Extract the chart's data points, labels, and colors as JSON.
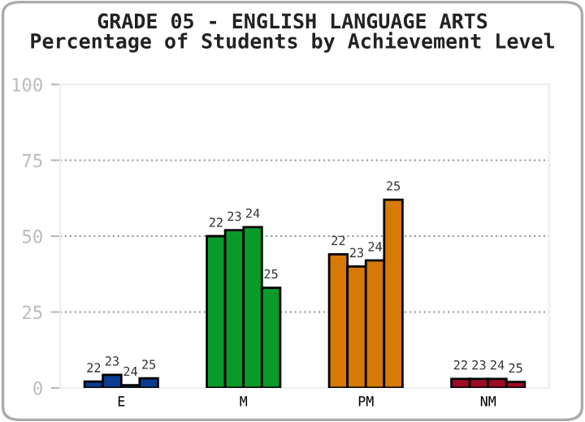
{
  "chart_data": {
    "type": "bar",
    "title": "GRADE 05 - ENGLISH LANGUAGE ARTS",
    "subtitle": "Percentage of Students by Achievement Level",
    "categories": [
      "E",
      "M",
      "PM",
      "NM"
    ],
    "series": [
      {
        "name": "22",
        "colors": [
          "#0a3d8f",
          "#0a9a2a",
          "#d67a05",
          "#a00a28"
        ],
        "values": [
          2.1,
          50,
          44,
          3
        ]
      },
      {
        "name": "23",
        "colors": [
          "#0a3d8f",
          "#0a9a2a",
          "#d67a05",
          "#a00a28"
        ],
        "values": [
          4.3,
          52,
          40,
          3
        ]
      },
      {
        "name": "24",
        "colors": [
          "#0a3d8f",
          "#0a9a2a",
          "#d67a05",
          "#a00a28"
        ],
        "values": [
          0.9,
          53,
          42,
          3
        ]
      },
      {
        "name": "25",
        "colors": [
          "#0a3d8f",
          "#0a9a2a",
          "#d67a05",
          "#a00a28"
        ],
        "values": [
          3.2,
          33,
          62,
          2
        ]
      }
    ],
    "ylim": [
      0,
      100
    ],
    "yticks": [
      0,
      25,
      50,
      75,
      100
    ],
    "grid": "y",
    "legend": false
  }
}
